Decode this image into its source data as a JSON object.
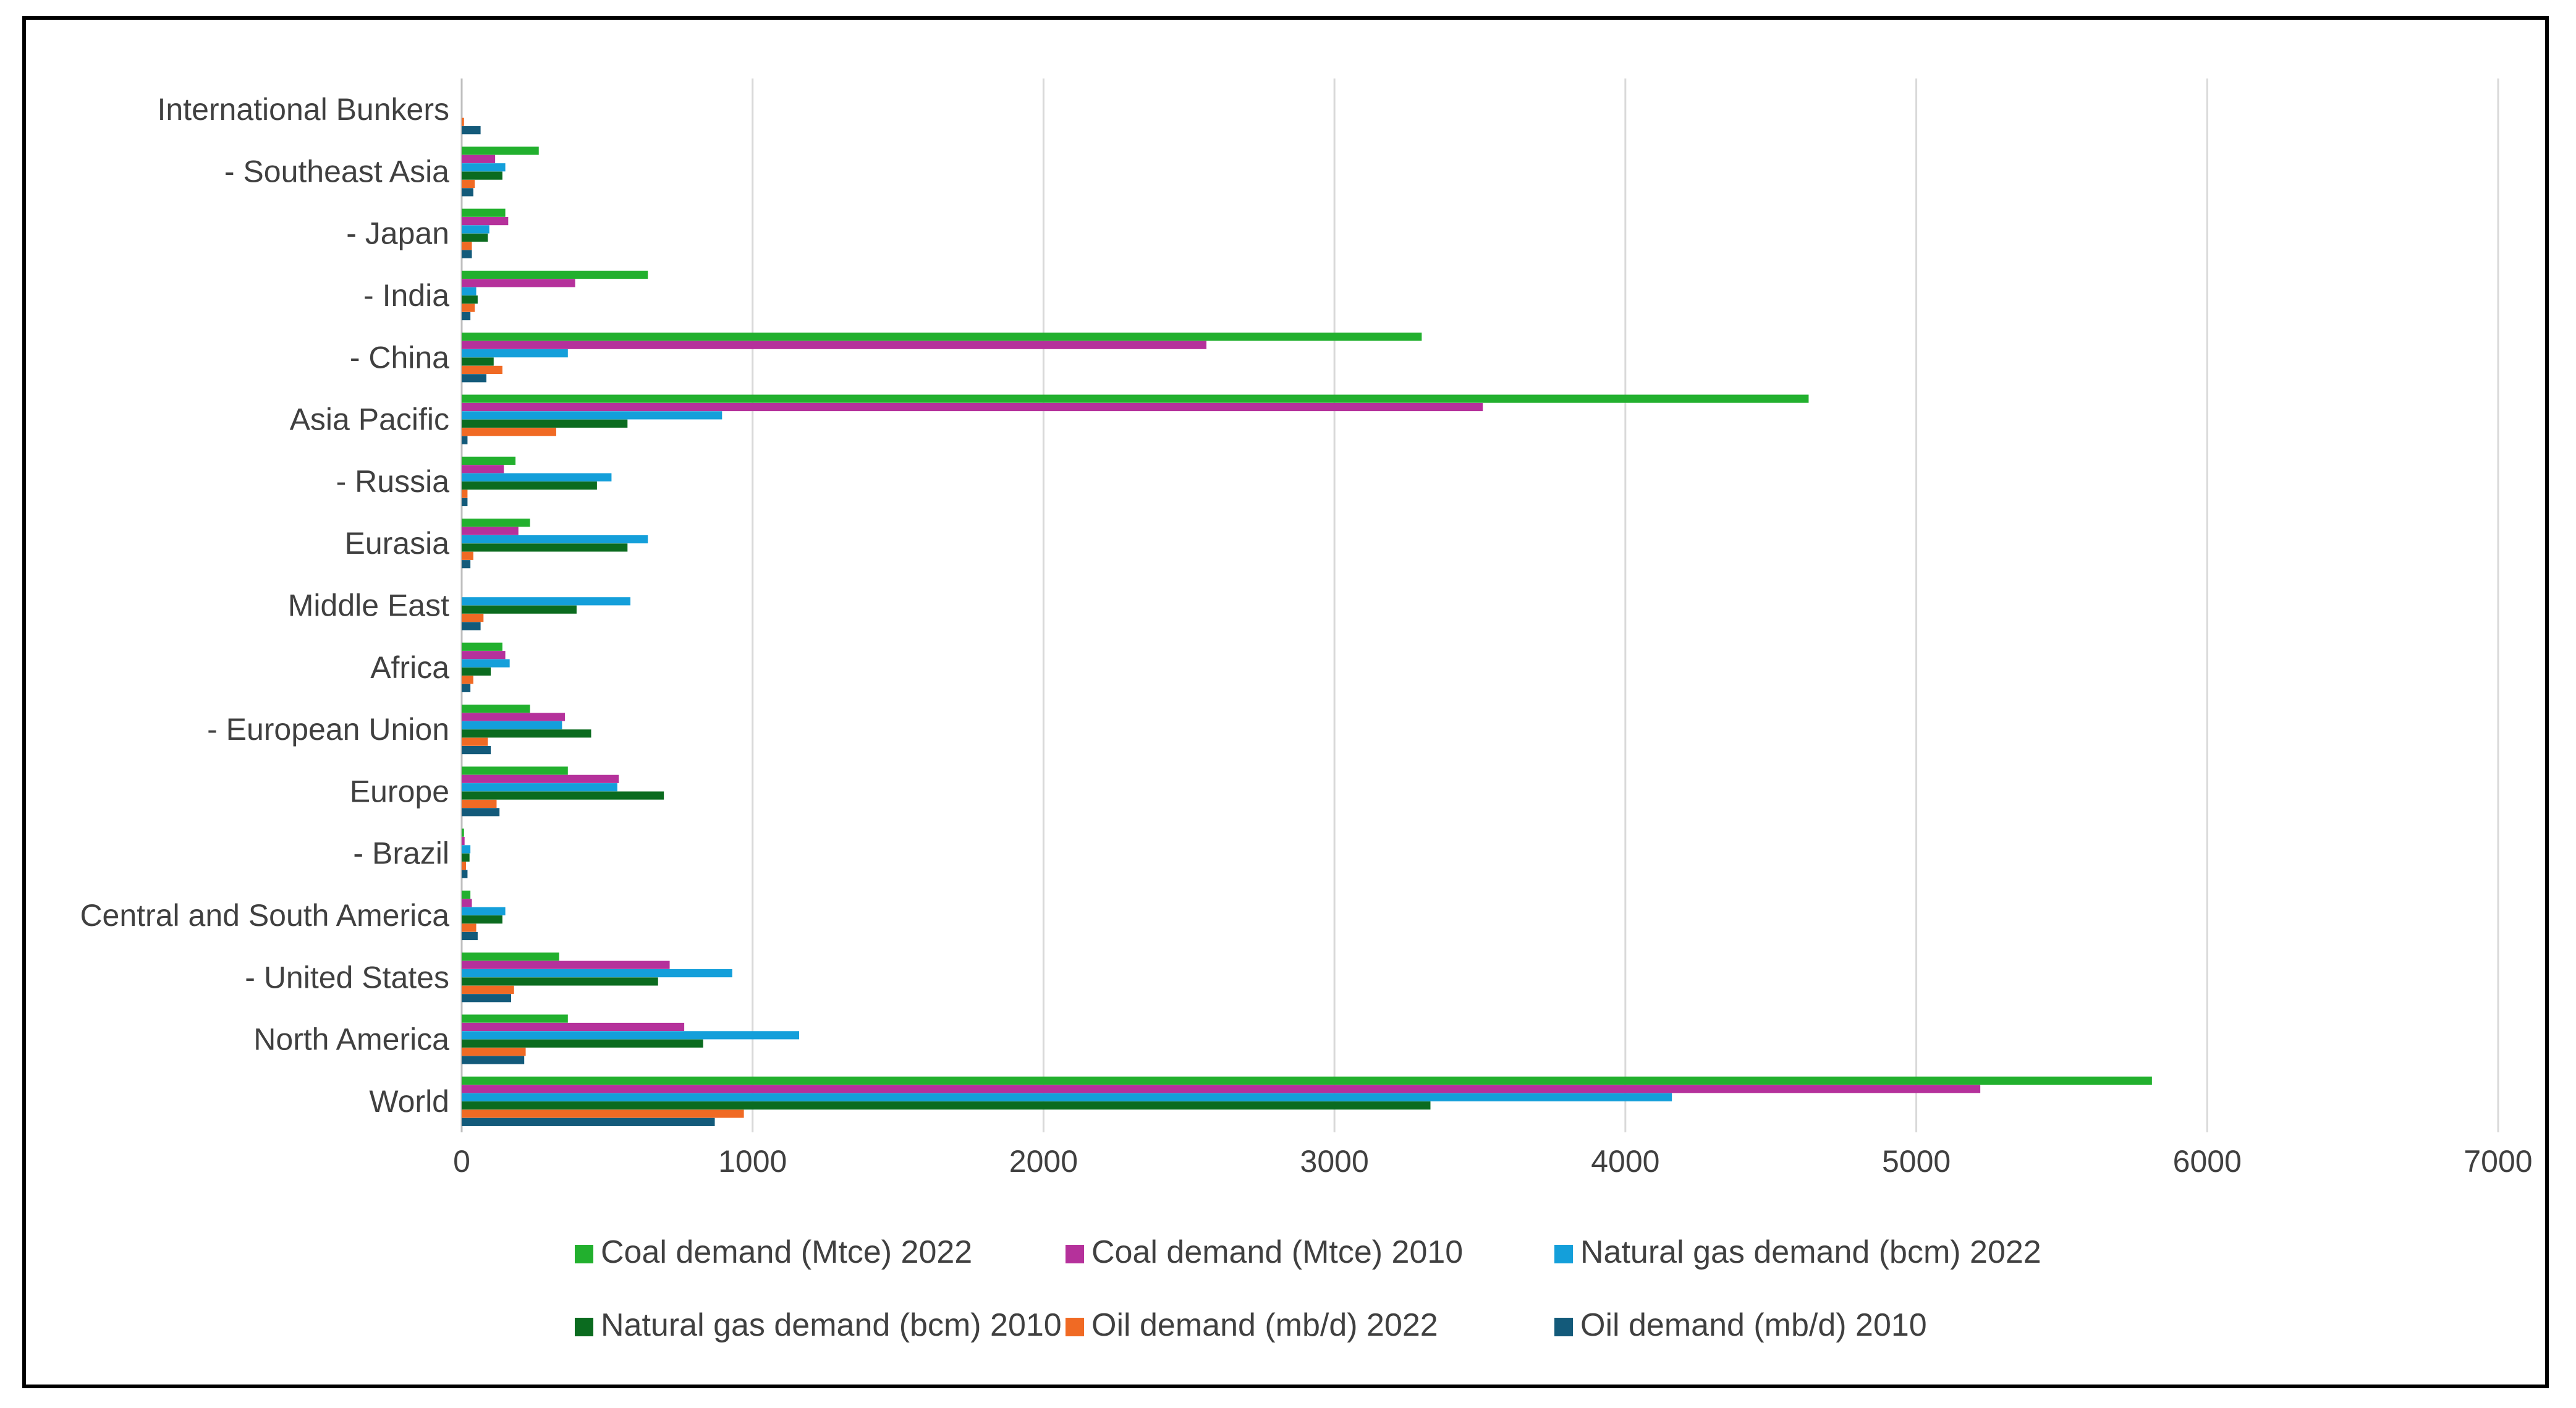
{
  "chart_data": {
    "type": "bar",
    "orientation": "horizontal",
    "title": "",
    "xlabel": "",
    "ylabel": "",
    "xlim": [
      0,
      7000
    ],
    "grid": true,
    "legend_position": "bottom",
    "x_ticks": [
      "0",
      "1000",
      "2000",
      "3000",
      "4000",
      "5000",
      "6000",
      "7000"
    ],
    "categories": [
      "International Bunkers",
      "- Southeast Asia",
      "- Japan",
      "- India",
      "- China",
      "Asia Pacific",
      "- Russia",
      "Eurasia",
      "Middle East",
      "Africa",
      "- European Union",
      "Europe",
      "- Brazil",
      "Central and South America",
      "- United States",
      "North America",
      "World"
    ],
    "series": [
      {
        "name": "Coal demand (Mtce) 2022",
        "color": "#22b02e",
        "values": [
          0,
          265,
          150,
          640,
          3300,
          4630,
          185,
          235,
          0,
          140,
          235,
          365,
          8,
          30,
          335,
          365,
          5810
        ]
      },
      {
        "name": "Coal demand (Mtce) 2010",
        "color": "#b5319b",
        "values": [
          0,
          115,
          160,
          390,
          2560,
          3510,
          145,
          195,
          0,
          150,
          355,
          540,
          10,
          35,
          715,
          765,
          5220
        ]
      },
      {
        "name": "Natural gas demand (bcm) 2022",
        "color": "#149fda",
        "values": [
          0,
          150,
          95,
          50,
          365,
          895,
          515,
          640,
          580,
          165,
          345,
          535,
          30,
          150,
          930,
          1160,
          4160
        ]
      },
      {
        "name": "Natural gas demand (bcm) 2010",
        "color": "#0b6b1f",
        "values": [
          0,
          140,
          90,
          55,
          110,
          570,
          465,
          570,
          395,
          100,
          445,
          695,
          27,
          140,
          675,
          830,
          3330
        ]
      },
      {
        "name": "Oil demand (mb/d) 2022",
        "color": "#f06a24",
        "values": [
          8,
          45,
          35,
          45,
          140,
          325,
          20,
          40,
          75,
          40,
          90,
          120,
          15,
          50,
          180,
          220,
          970
        ]
      },
      {
        "name": "Oil demand (mb/d) 2010",
        "color": "#135a7a",
        "values": [
          65,
          40,
          35,
          30,
          85,
          20,
          20,
          30,
          65,
          30,
          100,
          130,
          20,
          55,
          170,
          215,
          870
        ]
      }
    ]
  }
}
